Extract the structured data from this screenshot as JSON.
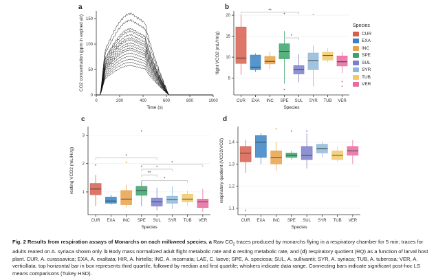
{
  "panels": {
    "a": "a",
    "b": "b",
    "c": "c",
    "d": "d"
  },
  "species": [
    "CUR",
    "EXA",
    "INC",
    "SPE",
    "SUL",
    "SYR",
    "TUB",
    "VER"
  ],
  "colors": {
    "CUR": "#d65f4f",
    "EXA": "#3a82c4",
    "INC": "#e8a24a",
    "SPE": "#3aa36b",
    "SUL": "#7b7fc9",
    "SYR": "#8fb8d8",
    "TUB": "#f2c96a",
    "VER": "#e86aa0"
  },
  "legend": {
    "title": "Species",
    "items": [
      "CUR",
      "EXA",
      "INC",
      "SPE",
      "SUL",
      "SYR",
      "TUB",
      "VER"
    ]
  },
  "chart_data": [
    {
      "panel": "a",
      "type": "line",
      "xlabel": "Time (s)",
      "ylabel": "CO2 concentration (ppm in expired air)",
      "xticks": [
        0,
        200,
        400,
        600,
        800,
        1000
      ],
      "yticks": [
        0,
        50,
        100,
        150
      ],
      "xlim": [
        0,
        1000
      ],
      "ylim": [
        0,
        165
      ],
      "peaks": [
        160,
        147,
        130,
        125,
        118,
        112,
        108,
        102,
        97,
        92,
        88,
        82,
        76,
        70,
        64,
        58
      ]
    },
    {
      "panel": "b",
      "type": "box",
      "ylabel": "flight VCO2 (mL/Hr/g)",
      "xlabel": "Species",
      "yticks": [
        5,
        10,
        15,
        20
      ],
      "ylim": [
        1,
        21
      ],
      "categories": [
        "CUR",
        "EXA",
        "INC",
        "SPE",
        "SUL",
        "SYR",
        "TUB",
        "VER"
      ],
      "boxes": [
        {
          "min": 5.8,
          "q1": 8.5,
          "median": 9.8,
          "q3": 17.2,
          "max": 20
        },
        {
          "min": 6.5,
          "q1": 7,
          "median": 7.6,
          "q3": 10.5,
          "max": 10.9
        },
        {
          "min": 7.2,
          "q1": 8.4,
          "median": 9,
          "q3": 10.2,
          "max": 11.2
        },
        {
          "min": 3.7,
          "q1": 9.6,
          "median": 11.4,
          "q3": 13.2,
          "max": 16.2
        },
        {
          "min": 4,
          "q1": 6,
          "median": 7,
          "q3": 8,
          "max": 10.7
        },
        {
          "min": 3,
          "q1": 7,
          "median": 9.2,
          "q3": 11,
          "max": 12.8
        },
        {
          "min": 8.8,
          "q1": 9.3,
          "median": 10.4,
          "q3": 11.2,
          "max": 12.2
        },
        {
          "min": 6.2,
          "q1": 7.9,
          "median": 8.9,
          "q3": 10.3,
          "max": 11.2
        }
      ],
      "outliers": [
        [
          3,
          20.4
        ],
        [
          5,
          20.2
        ],
        [
          7,
          4.2
        ],
        [
          7,
          3.1
        ],
        [
          3,
          2.3
        ]
      ],
      "brackets": [
        {
          "from": 0,
          "to": 4,
          "y": 20.7,
          "label": "**"
        },
        {
          "from": 3,
          "to": 4,
          "y": 14.6,
          "label": "*"
        }
      ]
    },
    {
      "panel": "c",
      "type": "box",
      "ylabel": "resting VCO2 (mL/Hr/g)",
      "xlabel": "Species",
      "yticks": [
        1,
        2,
        3
      ],
      "ylim": [
        0.2,
        3.3
      ],
      "categories": [
        "CUR",
        "EXA",
        "INC",
        "SPE",
        "SUL",
        "SYR",
        "TUB",
        "VER"
      ],
      "boxes": [
        {
          "min": 0.5,
          "q1": 0.9,
          "median": 1.1,
          "q3": 1.3,
          "max": 1.6
        },
        {
          "min": 0.55,
          "q1": 0.6,
          "median": 0.68,
          "q3": 0.82,
          "max": 0.9
        },
        {
          "min": 0.45,
          "q1": 0.55,
          "median": 0.75,
          "q3": 1.05,
          "max": 1.25
        },
        {
          "min": 0.5,
          "q1": 0.88,
          "median": 1.05,
          "q3": 1.2,
          "max": 1.4
        },
        {
          "min": 0.35,
          "q1": 0.5,
          "median": 0.65,
          "q3": 0.78,
          "max": 1.15
        },
        {
          "min": 0.4,
          "q1": 0.6,
          "median": 0.72,
          "q3": 0.85,
          "max": 1.2
        },
        {
          "min": 0.5,
          "q1": 0.65,
          "median": 0.75,
          "q3": 0.92,
          "max": 1.05
        },
        {
          "min": 0.3,
          "q1": 0.45,
          "median": 0.65,
          "q3": 0.75,
          "max": 1.1
        }
      ],
      "outliers": [
        [
          0,
          1.95
        ],
        [
          2,
          2.05
        ],
        [
          3,
          3.15
        ],
        [
          3,
          1.9
        ]
      ],
      "brackets": [
        {
          "from": 0,
          "to": 4,
          "y": 2.2,
          "label": "*"
        },
        {
          "from": 3,
          "to": 7,
          "y": 1.95,
          "label": "*"
        },
        {
          "from": 3,
          "to": 5,
          "y": 1.8,
          "label": "*"
        },
        {
          "from": 3,
          "to": 4,
          "y": 1.6,
          "label": "**"
        },
        {
          "from": 3,
          "to": 6,
          "y": 1.4,
          "label": "*"
        }
      ]
    },
    {
      "panel": "d",
      "type": "box",
      "ylabel": "respiratory quotient (VCO2/VO2)",
      "xlabel": "Species",
      "yticks": [
        1.1,
        1.2,
        1.3,
        1.4
      ],
      "ylim": [
        1.07,
        1.47
      ],
      "categories": [
        "CUR",
        "EXA",
        "INC",
        "SPE",
        "SUL",
        "SYR",
        "TUB",
        "VER"
      ],
      "boxes": [
        {
          "min": 1.26,
          "q1": 1.31,
          "median": 1.35,
          "q3": 1.38,
          "max": 1.41
        },
        {
          "min": 1.3,
          "q1": 1.33,
          "median": 1.4,
          "q3": 1.43,
          "max": 1.44
        },
        {
          "min": 1.27,
          "q1": 1.3,
          "median": 1.33,
          "q3": 1.36,
          "max": 1.4
        },
        {
          "min": 1.32,
          "q1": 1.33,
          "median": 1.34,
          "q3": 1.35,
          "max": 1.36
        },
        {
          "min": 1.28,
          "q1": 1.32,
          "median": 1.34,
          "q3": 1.38,
          "max": 1.44
        },
        {
          "min": 1.33,
          "q1": 1.35,
          "median": 1.37,
          "q3": 1.39,
          "max": 1.4
        },
        {
          "min": 1.31,
          "q1": 1.32,
          "median": 1.34,
          "q3": 1.36,
          "max": 1.38
        },
        {
          "min": 1.3,
          "q1": 1.34,
          "median": 1.36,
          "q3": 1.38,
          "max": 1.41
        }
      ],
      "outliers": [
        [
          0,
          1.09
        ],
        [
          2,
          1.46
        ],
        [
          3,
          1.45
        ],
        [
          4,
          1.45
        ]
      ],
      "brackets": []
    }
  ],
  "caption": {
    "bold_lead": "Fig. 2 Results from respiration assays of Monarchs on each milkweed species.",
    "a_label": "a",
    "a_text": "Raw CO",
    "a_text2": " traces produced by monarchs flying in a respiratory chamber for 5 min; traces for adults reared on A. syriaca shown only.",
    "b_label": "b",
    "b_text": "Body mass normalized adult flight metabolic rate and",
    "c_label": "c",
    "c_text": "resting metabolic rate, and (",
    "d_label": "d",
    "d_text": ") respiratory quotient (RQ) as a function of larval host plant. CUR, A. curassavica; EXA, A. exaltata; HIR, A. hirtella; INC, A. incarnata; LAE, C. laeve; SPE, A. speciosa; SUL, A. sullivantii; SYR, A. syriaca; TUB, A. tuberosa; VER, A. verticillata. top horizontal bar in box represents third quartile, followed by median and first quartile; whiskers indicate data range. Connecting bars indicate significant post-hoc LS means comparisons (Tukey HSD)."
  }
}
